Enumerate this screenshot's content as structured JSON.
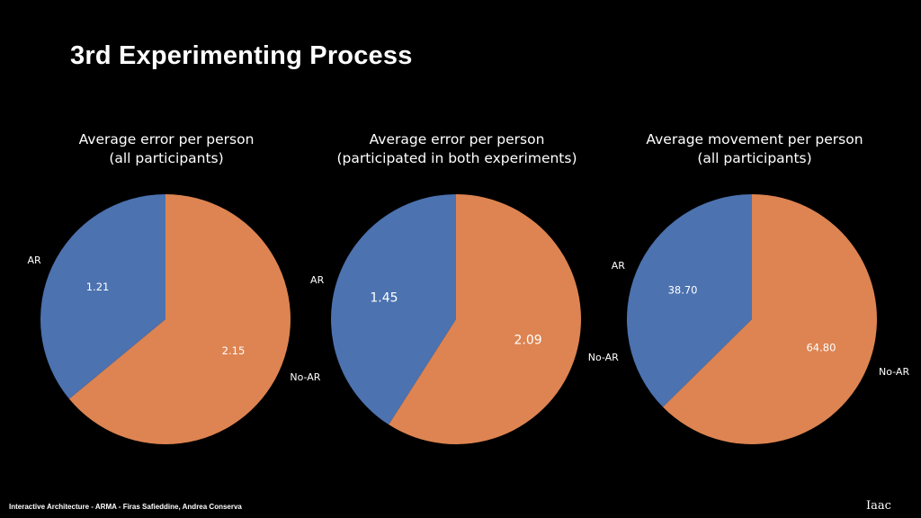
{
  "slide": {
    "title": "3rd Experimenting Process",
    "footer": "Interactive Architecture - ARMA - Firas Safieddine, Andrea Conserva",
    "logo_text": "Iaac"
  },
  "colors": {
    "AR": "#4c72b0",
    "No-AR": "#dd8452",
    "background": "#000000"
  },
  "chart_data": [
    {
      "type": "pie",
      "title": [
        "Average error per person",
        "(all participants)"
      ],
      "labels": [
        "AR",
        "No-AR"
      ],
      "values": [
        1.21,
        2.15
      ],
      "value_labels": [
        "1.21",
        "2.15"
      ],
      "start_angle": 90,
      "direction": "counterclockwise"
    },
    {
      "type": "pie",
      "title": [
        "Average error per person",
        "(participated in both experiments)"
      ],
      "labels": [
        "AR",
        "No-AR"
      ],
      "values": [
        1.45,
        2.09
      ],
      "value_labels": [
        "1.45",
        "2.09"
      ],
      "start_angle": 90,
      "direction": "counterclockwise"
    },
    {
      "type": "pie",
      "title": [
        "Average movement per person",
        "(all participants)"
      ],
      "labels": [
        "AR",
        "No-AR"
      ],
      "values": [
        38.7,
        64.8
      ],
      "value_labels": [
        "38.70",
        "64.80"
      ],
      "start_angle": 90,
      "direction": "counterclockwise"
    }
  ]
}
